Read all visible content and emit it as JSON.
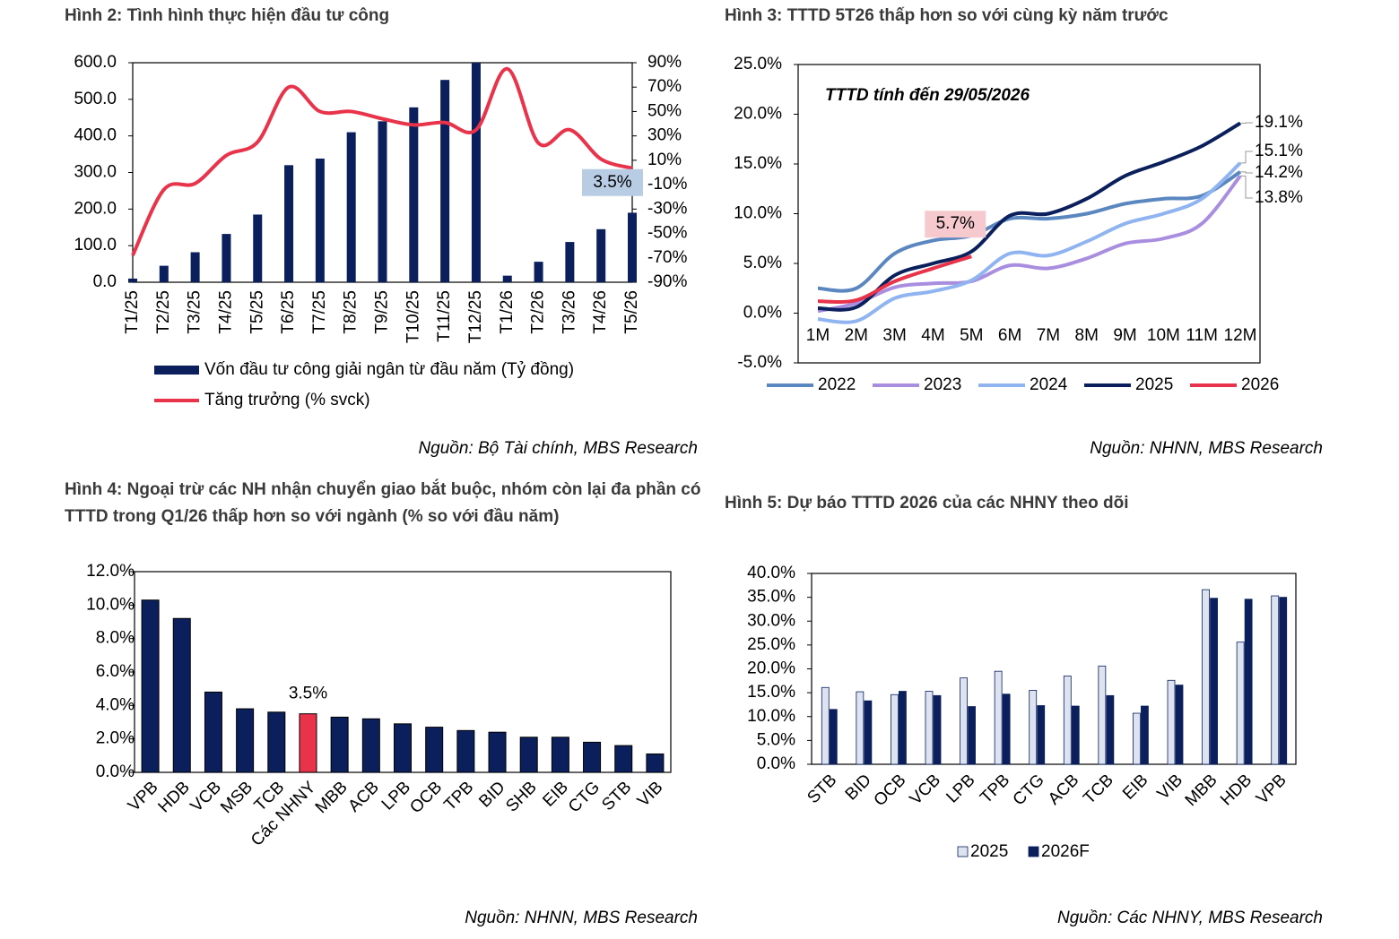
{
  "chart_data": [
    {
      "type": "combo",
      "title": "Hình 2: Tình hình thực hiện đầu tư công",
      "source": "Nguồn: Bộ Tài chính, MBS Research",
      "categories": [
        "T1/25",
        "T2/25",
        "T3/25",
        "T4/25",
        "T5/25",
        "T6/25",
        "T7/25",
        "T8/25",
        "T9/25",
        "T10/25",
        "T11/25",
        "T12/25",
        "T1/26",
        "T2/26",
        "T3/26",
        "T4/26",
        "T5/26"
      ],
      "series": [
        {
          "name": "Vốn đầu tư công giải ngân từ đầu năm (Tỷ đồng)",
          "type": "bar",
          "color": "#0a1f5c",
          "values": [
            10,
            45,
            82,
            132,
            185,
            320,
            338,
            410,
            440,
            478,
            553,
            600,
            18,
            56,
            110,
            145,
            190
          ]
        },
        {
          "name": "Tăng trưởng (% svck)",
          "type": "line",
          "axis": "y2",
          "color": "#e8334a",
          "values": [
            -68,
            -14,
            -9,
            14,
            25,
            70,
            50,
            50,
            44,
            39,
            41,
            35,
            85,
            24,
            35,
            11,
            3.5
          ],
          "value_labels": [
            null,
            null,
            null,
            null,
            null,
            null,
            null,
            null,
            null,
            null,
            null,
            null,
            null,
            null,
            null,
            null,
            "3.5%"
          ]
        }
      ],
      "ylim": [
        0,
        600
      ],
      "yticks": [
        {
          "value": 0,
          "label": "0.0"
        },
        {
          "value": 100,
          "label": "100.0"
        },
        {
          "value": 200,
          "label": "200.0"
        },
        {
          "value": 300,
          "label": "300.0"
        },
        {
          "value": 400,
          "label": "400.0"
        },
        {
          "value": 500,
          "label": "500.0"
        },
        {
          "value": 600,
          "label": "600.0"
        }
      ],
      "y2lim": [
        -90,
        90
      ],
      "y2ticks": [
        {
          "value": -90,
          "label": "-90%"
        },
        {
          "value": -70,
          "label": "-70%"
        },
        {
          "value": -50,
          "label": "-50%"
        },
        {
          "value": -30,
          "label": "-30%"
        },
        {
          "value": -10,
          "label": "-10%"
        },
        {
          "value": 10,
          "label": "10%"
        },
        {
          "value": 30,
          "label": "30%"
        },
        {
          "value": 50,
          "label": "50%"
        },
        {
          "value": 70,
          "label": "70%"
        },
        {
          "value": 90,
          "label": "90%"
        }
      ]
    },
    {
      "type": "line",
      "title": "Hình 3: TTTD 5T26 thấp hơn so với cùng kỳ năm trước",
      "source": "Nguồn: NHNN, MBS Research",
      "annotation": "TTTD tính đến 29/05/2026",
      "categories": [
        "1M",
        "2M",
        "3M",
        "4M",
        "5M",
        "6M",
        "7M",
        "8M",
        "9M",
        "10M",
        "11M",
        "12M"
      ],
      "series": [
        {
          "name": "2022",
          "color": "#5b87c0",
          "values": [
            2.5,
            2.5,
            6,
            7.3,
            7.8,
            9.5,
            9.5,
            10,
            11,
            11.5,
            11.8,
            14.2
          ],
          "value_labels": [
            null,
            null,
            null,
            null,
            null,
            null,
            null,
            null,
            null,
            null,
            null,
            "14.2%"
          ]
        },
        {
          "name": "2023",
          "color": "#a98ee0",
          "values": [
            0.2,
            1,
            2.6,
            3,
            3.2,
            4.8,
            4.5,
            5.5,
            7,
            7.5,
            9,
            13.8
          ],
          "value_labels": [
            null,
            null,
            null,
            null,
            null,
            null,
            null,
            null,
            null,
            null,
            null,
            "13.8%"
          ]
        },
        {
          "name": "2024",
          "color": "#8fb4f0",
          "values": [
            -0.6,
            -0.8,
            1.5,
            2.2,
            3.3,
            6,
            5.8,
            7.2,
            9,
            10,
            11.5,
            15.1
          ],
          "value_labels": [
            null,
            null,
            null,
            null,
            null,
            null,
            null,
            null,
            null,
            null,
            null,
            "15.1%"
          ]
        },
        {
          "name": "2025",
          "color": "#0a1f5c",
          "values": [
            0.5,
            0.6,
            3.8,
            5,
            6.2,
            9.8,
            10,
            11.5,
            13.8,
            15.2,
            16.8,
            19.1
          ],
          "value_labels": [
            null,
            null,
            null,
            null,
            null,
            null,
            null,
            null,
            null,
            null,
            null,
            "19.1%"
          ]
        },
        {
          "name": "2026",
          "color": "#e8334a",
          "values": [
            1.2,
            1.3,
            3.2,
            4.5,
            5.7,
            null,
            null,
            null,
            null,
            null,
            null,
            null
          ],
          "value_labels": [
            null,
            null,
            null,
            null,
            "5.7%",
            null,
            null,
            null,
            null,
            null,
            null,
            null
          ]
        }
      ],
      "ylim": [
        -5,
        25
      ],
      "yticks": [
        {
          "value": -5,
          "label": "-5.0%"
        },
        {
          "value": 0,
          "label": "0.0%"
        },
        {
          "value": 5,
          "label": "5.0%"
        },
        {
          "value": 10,
          "label": "10.0%"
        },
        {
          "value": 15,
          "label": "15.0%"
        },
        {
          "value": 20,
          "label": "20.0%"
        },
        {
          "value": 25,
          "label": "25.0%"
        }
      ]
    },
    {
      "type": "bar",
      "title": "Hình 4: Ngoại trừ các NH nhận chuyển giao bắt buộc, nhóm còn lại đa phần có TTTD trong Q1/26 thấp hơn so với ngành (% so với đầu năm)",
      "source": "Nguồn: NHNN, MBS Research",
      "categories": [
        "VPB",
        "HDB",
        "VCB",
        "MSB",
        "TCB",
        "Các NHNY",
        "MBB",
        "ACB",
        "LPB",
        "OCB",
        "TPB",
        "BID",
        "SHB",
        "EIB",
        "CTG",
        "STB",
        "VIB"
      ],
      "values": [
        10.3,
        9.2,
        4.8,
        3.8,
        3.6,
        3.5,
        3.3,
        3.2,
        2.9,
        2.7,
        2.5,
        2.4,
        2.1,
        2.1,
        1.8,
        1.6,
        1.1
      ],
      "value_labels": [
        null,
        null,
        null,
        null,
        null,
        "3.5%",
        null,
        null,
        null,
        null,
        null,
        null,
        null,
        null,
        null,
        null,
        null
      ],
      "colors": [
        "#0a1f5c",
        "#0a1f5c",
        "#0a1f5c",
        "#0a1f5c",
        "#0a1f5c",
        "#e8334a",
        "#0a1f5c",
        "#0a1f5c",
        "#0a1f5c",
        "#0a1f5c",
        "#0a1f5c",
        "#0a1f5c",
        "#0a1f5c",
        "#0a1f5c",
        "#0a1f5c",
        "#0a1f5c",
        "#0a1f5c"
      ],
      "ylim": [
        0,
        12
      ],
      "yticks": [
        {
          "value": 0,
          "label": "0.0%"
        },
        {
          "value": 2,
          "label": "2.0%"
        },
        {
          "value": 4,
          "label": "4.0%"
        },
        {
          "value": 6,
          "label": "6.0%"
        },
        {
          "value": 8,
          "label": "8.0%"
        },
        {
          "value": 10,
          "label": "10.0%"
        },
        {
          "value": 12,
          "label": "12.0%"
        }
      ]
    },
    {
      "type": "bar",
      "title": "Hình 5: Dự báo TTTD 2026 của các NHNY theo dõi",
      "source": "Nguồn: Các NHNY, MBS Research",
      "categories": [
        "STB",
        "BID",
        "OCB",
        "VCB",
        "LPB",
        "TPB",
        "CTG",
        "ACB",
        "TCB",
        "EIB",
        "VIB",
        "MBB",
        "HDB",
        "VPB"
      ],
      "series": [
        {
          "name": "2025",
          "color": "#dde3f0",
          "values": [
            16.1,
            15.2,
            14.6,
            15.3,
            18.1,
            19.5,
            15.5,
            18.5,
            20.6,
            10.7,
            17.6,
            36.6,
            25.6,
            35.3
          ]
        },
        {
          "name": "2026F",
          "color": "#0a1f5c",
          "values": [
            11.5,
            13.3,
            15.3,
            14.4,
            12.1,
            14.7,
            12.3,
            12.2,
            14.4,
            12.2,
            16.6,
            34.8,
            34.6,
            35.0
          ]
        }
      ],
      "ylim": [
        0,
        40
      ],
      "yticks": [
        {
          "value": 0,
          "label": "0.0%"
        },
        {
          "value": 5,
          "label": "5.0%"
        },
        {
          "value": 10,
          "label": "10.0%"
        },
        {
          "value": 15,
          "label": "15.0%"
        },
        {
          "value": 20,
          "label": "20.0%"
        },
        {
          "value": 25,
          "label": "25.0%"
        },
        {
          "value": 30,
          "label": "30.0%"
        },
        {
          "value": 35,
          "label": "35.0%"
        },
        {
          "value": 40,
          "label": "40.0%"
        }
      ]
    }
  ]
}
